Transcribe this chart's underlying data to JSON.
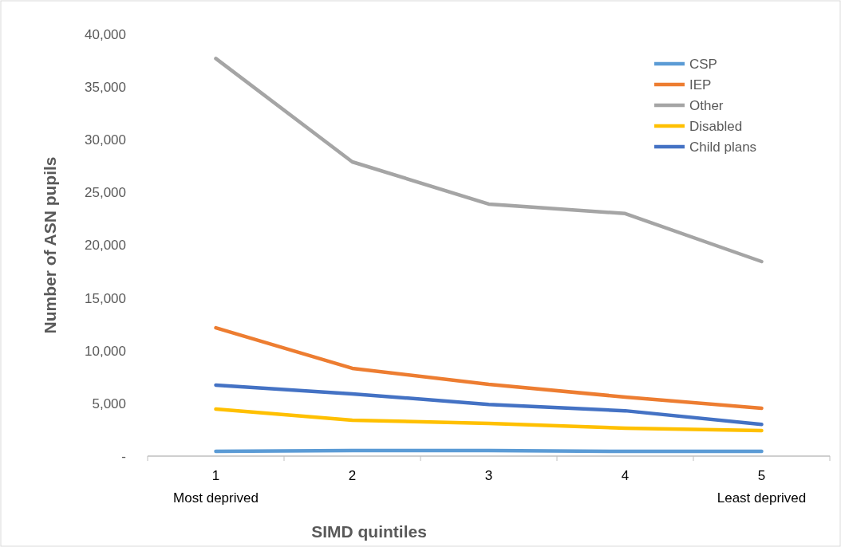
{
  "chart_data": {
    "type": "line",
    "xlabel": "SIMD quintiles",
    "ylabel": "Number of ASN pupils",
    "categories": [
      "1\nMost deprived",
      "2",
      "3",
      "4",
      "5\nLeast deprived"
    ],
    "ylim": [
      0,
      40000
    ],
    "yticks": [
      {
        "value": 0,
        "label": "-"
      },
      {
        "value": 5000,
        "label": "5,000"
      },
      {
        "value": 10000,
        "label": "10,000"
      },
      {
        "value": 15000,
        "label": "15,000"
      },
      {
        "value": 20000,
        "label": "20,000"
      },
      {
        "value": 25000,
        "label": "25,000"
      },
      {
        "value": 30000,
        "label": "30,000"
      },
      {
        "value": 35000,
        "label": "35,000"
      },
      {
        "value": 40000,
        "label": "40,000"
      }
    ],
    "legend": "top right",
    "marker": "none",
    "line_style": "solid",
    "series": [
      {
        "name": "CSP",
        "color": "#5b9bd5",
        "values": [
          450,
          530,
          530,
          450,
          450
        ]
      },
      {
        "name": "IEP",
        "color": "#ed7d31",
        "values": [
          12170,
          8320,
          6800,
          5600,
          4540
        ]
      },
      {
        "name": "Other",
        "color": "#a5a5a5",
        "values": [
          37700,
          27900,
          23900,
          23000,
          18450
        ]
      },
      {
        "name": "Disabled",
        "color": "#ffc000",
        "values": [
          4460,
          3400,
          3100,
          2650,
          2420
        ]
      },
      {
        "name": "Child plans",
        "color": "#4472c4",
        "values": [
          6730,
          5900,
          4900,
          4300,
          3000
        ]
      }
    ]
  }
}
